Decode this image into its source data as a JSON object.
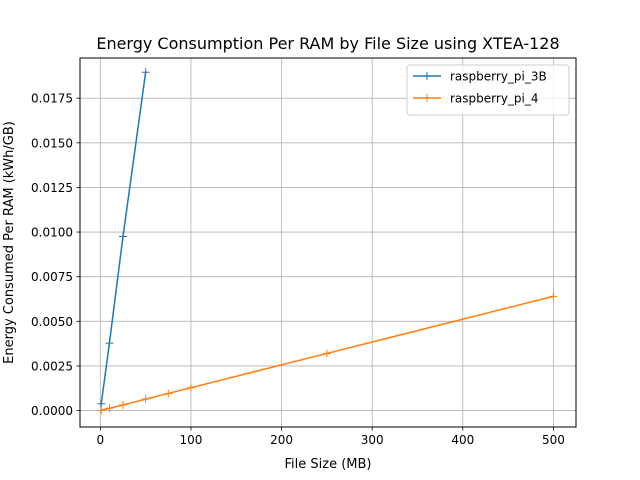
{
  "chart_data": {
    "type": "line",
    "title": "Energy Consumption Per RAM by File Size using XTEA-128",
    "xlabel": "File Size (MB)",
    "ylabel": "Energy Consumed Per RAM (kWh/GB)",
    "xlim": [
      -22.45,
      524.95
    ],
    "ylim": [
      -0.00092,
      0.01975
    ],
    "xticks": [
      0,
      100,
      200,
      300,
      400,
      500
    ],
    "xtick_labels": [
      "0",
      "100",
      "200",
      "300",
      "400",
      "500"
    ],
    "yticks": [
      0.0,
      0.0025,
      0.005,
      0.0075,
      0.01,
      0.0125,
      0.015,
      0.0175
    ],
    "ytick_labels": [
      "0.0000",
      "0.0025",
      "0.0050",
      "0.0075",
      "0.0100",
      "0.0125",
      "0.0150",
      "0.0175"
    ],
    "grid": true,
    "legend_position": "top-right",
    "series": [
      {
        "name": "raspberry_pi_3B",
        "color": "#1f77b4",
        "marker": "+",
        "x": [
          1,
          10,
          25,
          50
        ],
        "y": [
          0.00038,
          0.00378,
          0.00975,
          0.01895
        ]
      },
      {
        "name": "raspberry_pi_4",
        "color": "#ff7f0e",
        "marker": "+",
        "x": [
          1,
          10,
          25,
          50,
          75,
          100,
          250,
          500
        ],
        "y": [
          1e-05,
          0.00013,
          0.00032,
          0.00064,
          0.00096,
          0.00128,
          0.0032,
          0.0064
        ]
      }
    ]
  }
}
